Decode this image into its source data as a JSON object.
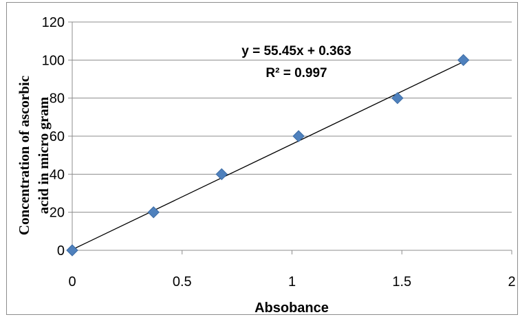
{
  "chart_data": {
    "type": "scatter",
    "xlabel": "Absobance",
    "ylabel_lines": [
      "Concentration of ascorbic",
      "acid in micro gram"
    ],
    "xlim": [
      0,
      2
    ],
    "ylim": [
      0,
      120
    ],
    "xticks": [
      0,
      0.5,
      1,
      1.5,
      2
    ],
    "xtick_labels": [
      "0",
      "0.5",
      "1",
      "1.5",
      "2"
    ],
    "yticks": [
      0,
      20,
      40,
      60,
      80,
      100,
      120
    ],
    "ytick_labels": [
      "0",
      "20",
      "40",
      "60",
      "80",
      "100",
      "120"
    ],
    "grid": "horizontal",
    "legend": "none",
    "series": [
      {
        "marker": "diamond",
        "color": "#4F81BD",
        "x": [
          0,
          0.37,
          0.68,
          1.03,
          1.48,
          1.78
        ],
        "y": [
          0,
          20,
          40,
          60,
          80,
          100
        ]
      }
    ],
    "trendline": {
      "type": "linear",
      "slope": 55.45,
      "intercept": 0.363,
      "color": "#000000",
      "x_range": [
        0,
        1.78
      ]
    },
    "annotations": [
      "y = 55.45x + 0.363",
      "R² = 0.997"
    ]
  }
}
